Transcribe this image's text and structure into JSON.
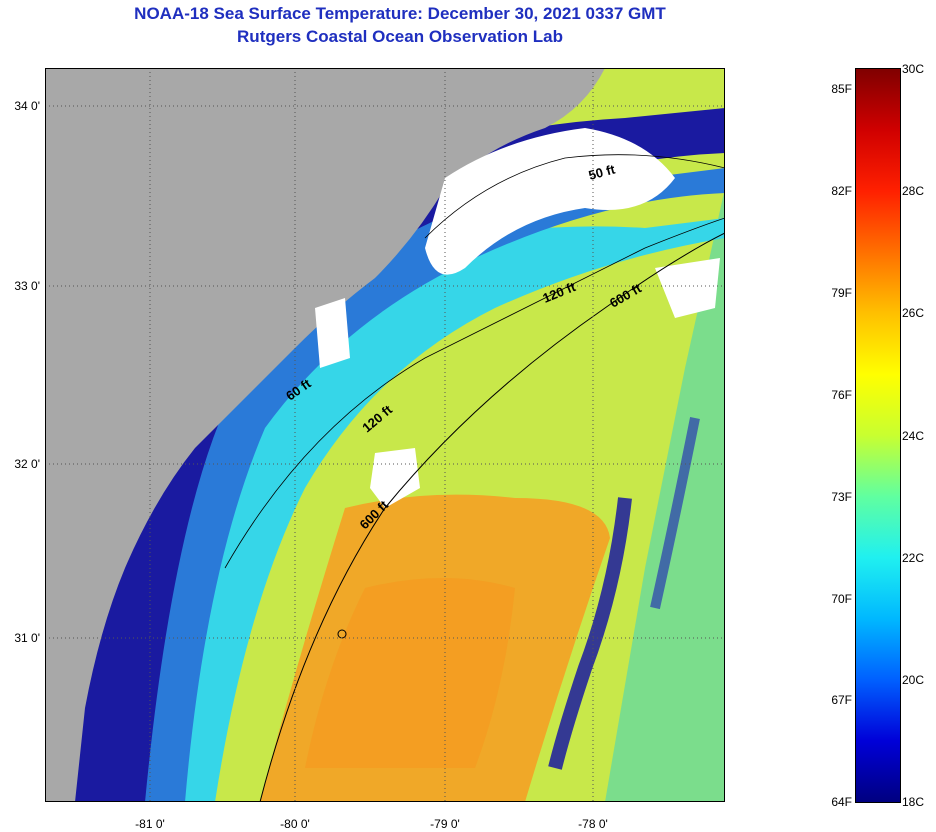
{
  "title": {
    "line1": "NOAA-18 Sea Surface Temperature:  December 30, 2021 0337 GMT",
    "line2": "Rutgers Coastal Ocean Observation Lab"
  },
  "map": {
    "lat_labels": [
      "34 0'",
      "33 0'",
      "32 0'",
      "31 0'"
    ],
    "lon_labels": [
      "-81 0'",
      "-80 0'",
      "-79 0'",
      "-78 0'"
    ],
    "contours": [
      {
        "label": "50 ft"
      },
      {
        "label": "60 ft"
      },
      {
        "label": "120 ft"
      },
      {
        "label": "120 ft"
      },
      {
        "label": "600 ft"
      },
      {
        "label": "600 ft"
      }
    ],
    "colors": {
      "land": "#a8a8a8",
      "cloud": "#ffffff",
      "cold": "#1a1aa0",
      "cool": "#2a7ad8",
      "mid": "#36d6e8",
      "warm": "#c8e84a",
      "hot": "#f0a828"
    }
  },
  "colorbar": {
    "fahrenheit": [
      "85F",
      "82F",
      "79F",
      "76F",
      "73F",
      "70F",
      "67F",
      "64F"
    ],
    "celsius": [
      "30C",
      "28C",
      "26C",
      "24C",
      "22C",
      "20C",
      "18C"
    ],
    "gradient": [
      "#000080",
      "#0000d8",
      "#0060ff",
      "#00b8ff",
      "#20f0f0",
      "#60ffa0",
      "#c8ff30",
      "#ffff00",
      "#ffc000",
      "#ff7000",
      "#ff2000",
      "#d00000",
      "#800000"
    ]
  }
}
